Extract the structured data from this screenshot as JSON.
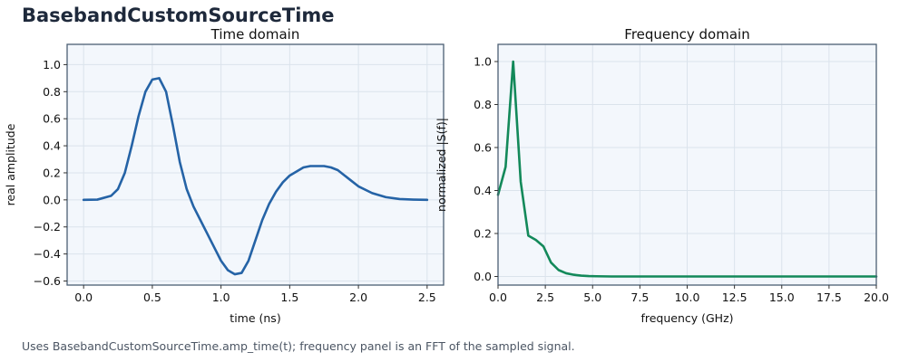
{
  "page": {
    "title": "BasebandCustomSourceTime",
    "footnote": "Uses BasebandCustomSourceTime.amp_time(t); frequency panel is an FFT of the sampled signal."
  },
  "colors": {
    "background": "#f3f7fc",
    "grid": "#dbe3ec",
    "frame": "#4b5f73",
    "time_series": "#2563a6",
    "freq_series": "#13895a"
  },
  "chart_data": [
    {
      "type": "line",
      "title": "Time domain",
      "xlabel": "time (ns)",
      "ylabel": "real amplitude",
      "xlim": [
        -0.12,
        2.62
      ],
      "ylim": [
        -0.63,
        1.15
      ],
      "xticks": [
        0.0,
        0.5,
        1.0,
        1.5,
        2.0,
        2.5
      ],
      "xtick_labels": [
        "0.0",
        "0.5",
        "1.0",
        "1.5",
        "2.0",
        "2.5"
      ],
      "yticks": [
        -0.6,
        -0.4,
        -0.2,
        0.0,
        0.2,
        0.4,
        0.6,
        0.8,
        1.0
      ],
      "ytick_labels": [
        "−0.6",
        "−0.4",
        "−0.2",
        "0.0",
        "0.2",
        "0.4",
        "0.6",
        "0.8",
        "1.0"
      ],
      "grid": true,
      "series": [
        {
          "x": [
            0.0,
            0.1,
            0.2,
            0.25,
            0.3,
            0.35,
            0.4,
            0.45,
            0.5,
            0.55,
            0.6,
            0.65,
            0.7,
            0.75,
            0.8,
            0.85,
            0.9,
            0.95,
            1.0,
            1.05,
            1.1,
            1.15,
            1.2,
            1.25,
            1.3,
            1.35,
            1.4,
            1.45,
            1.5,
            1.55,
            1.6,
            1.65,
            1.7,
            1.75,
            1.8,
            1.85,
            1.9,
            1.95,
            2.0,
            2.1,
            2.2,
            2.3,
            2.4,
            2.5
          ],
          "y": [
            0.0,
            0.002,
            0.03,
            0.08,
            0.2,
            0.4,
            0.62,
            0.8,
            0.89,
            0.9,
            0.8,
            0.55,
            0.28,
            0.08,
            -0.05,
            -0.15,
            -0.25,
            -0.35,
            -0.45,
            -0.52,
            -0.55,
            -0.54,
            -0.45,
            -0.3,
            -0.15,
            -0.03,
            0.06,
            0.13,
            0.18,
            0.21,
            0.24,
            0.25,
            0.25,
            0.25,
            0.24,
            0.22,
            0.18,
            0.14,
            0.1,
            0.05,
            0.02,
            0.006,
            0.002,
            0.0
          ]
        }
      ]
    },
    {
      "type": "line",
      "title": "Frequency domain",
      "xlabel": "frequency (GHz)",
      "ylabel": "normalized |S(f)|",
      "xlim": [
        0,
        20
      ],
      "ylim": [
        -0.04,
        1.08
      ],
      "xticks": [
        0.0,
        2.5,
        5.0,
        7.5,
        10.0,
        12.5,
        15.0,
        17.5,
        20.0
      ],
      "xtick_labels": [
        "0.0",
        "2.5",
        "5.0",
        "7.5",
        "10.0",
        "12.5",
        "15.0",
        "17.5",
        "20.0"
      ],
      "yticks": [
        0.0,
        0.2,
        0.4,
        0.6,
        0.8,
        1.0
      ],
      "ytick_labels": [
        "0.0",
        "0.2",
        "0.4",
        "0.6",
        "0.8",
        "1.0"
      ],
      "grid": true,
      "series": [
        {
          "x": [
            0.0,
            0.4,
            0.8,
            1.2,
            1.6,
            2.0,
            2.4,
            2.8,
            3.2,
            3.6,
            4.0,
            4.4,
            4.8,
            5.2,
            6.0,
            8.0,
            10.0,
            12.0,
            14.0,
            16.0,
            18.0,
            20.0
          ],
          "y": [
            0.38,
            0.51,
            1.0,
            0.44,
            0.19,
            0.17,
            0.14,
            0.065,
            0.03,
            0.015,
            0.008,
            0.004,
            0.002,
            0.001,
            0.0,
            0.0,
            0.0,
            0.0,
            0.0,
            0.0,
            0.0,
            0.0
          ]
        }
      ]
    }
  ]
}
